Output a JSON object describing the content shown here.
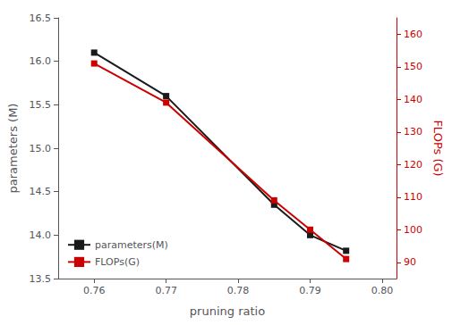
{
  "chart_data": {
    "type": "line",
    "xlabel": "pruning ratio",
    "ylabel": "parameters (M)",
    "y2label": "FLOPs (G)",
    "x": [
      0.76,
      0.77,
      0.785,
      0.79,
      0.795
    ],
    "series": [
      {
        "name": "parameters(M)",
        "color": "#1a1a1a",
        "marker": "square",
        "values": [
          16.1,
          15.6,
          14.35,
          14.0,
          13.82
        ]
      },
      {
        "name": "FLOPs(G)",
        "color": "#cc0000",
        "marker": "square",
        "axis": "y2",
        "values": [
          151.0,
          139.0,
          109.0,
          100.0,
          91.0
        ]
      }
    ],
    "xlim": [
      0.755,
      0.802
    ],
    "xticks": [
      0.76,
      0.77,
      0.78,
      0.79,
      {
        "value": 0.8,
        "label": "0.80"
      }
    ],
    "ylim": [
      13.5,
      16.5
    ],
    "yticks": [
      13.5,
      {
        "value": 14,
        "label": "14.0"
      },
      14.5,
      {
        "value": 15,
        "label": "15.0"
      },
      15.5,
      {
        "value": 16,
        "label": "16.0"
      },
      16.5
    ],
    "y2lim": [
      85,
      165
    ],
    "y2ticks": [
      90,
      100,
      110,
      120,
      130,
      140,
      150,
      160
    ],
    "grid": false,
    "legend": "lower left"
  }
}
